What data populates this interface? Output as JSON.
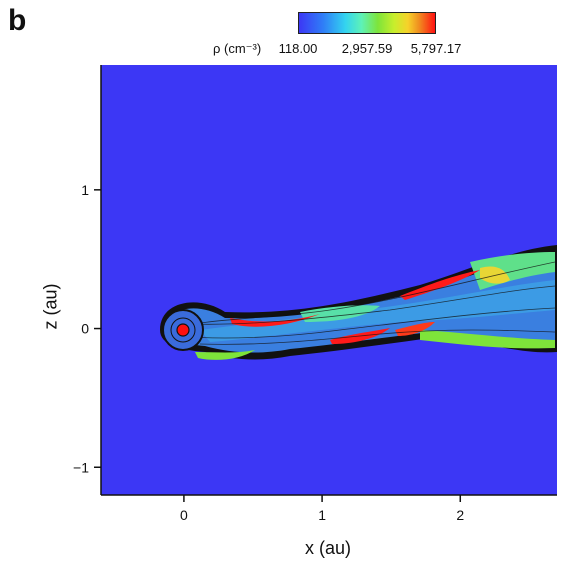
{
  "panel_label": "b",
  "colorbar": {
    "label": "ρ (cm⁻³)",
    "ticks": [
      "118.00",
      "2,957.59",
      "5,797.17"
    ],
    "colors": [
      "#3c37f5",
      "#33d3f0",
      "#7ee43a",
      "#f6d22a",
      "#ff1212"
    ]
  },
  "chart_data": {
    "type": "heatmap",
    "xlabel": "x (au)",
    "ylabel": "z (au)",
    "xlim": [
      -0.6,
      2.7
    ],
    "ylim": [
      -1.2,
      1.9
    ],
    "x_ticks": [
      0,
      1,
      2
    ],
    "y_ticks": [
      -1,
      0,
      1
    ],
    "x_tick_labels": [
      "0",
      "1",
      "2"
    ],
    "y_tick_labels": [
      "−1",
      "0",
      "1"
    ],
    "background_color": "#3c37f5",
    "grid": false
  }
}
